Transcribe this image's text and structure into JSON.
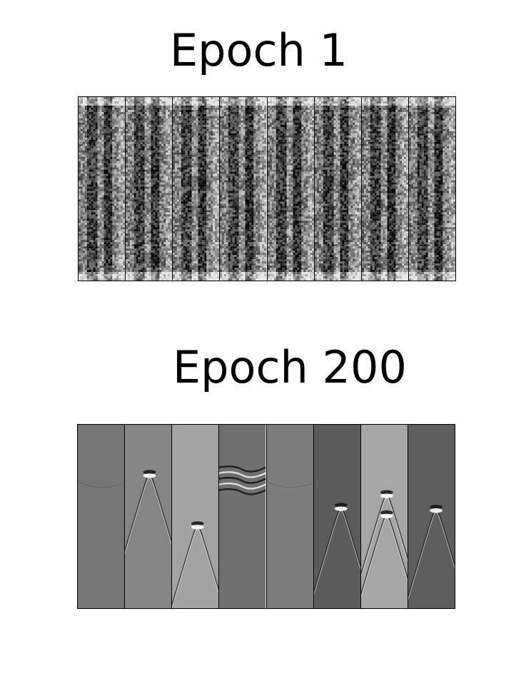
{
  "panels": [
    {
      "title": "Epoch 1",
      "tiles": [
        {
          "kind": "noise",
          "base": "#9a9a9a",
          "seed": 1
        },
        {
          "kind": "noise",
          "base": "#8e8e8e",
          "seed": 2
        },
        {
          "kind": "noise",
          "base": "#a0a0a0",
          "seed": 3
        },
        {
          "kind": "noise",
          "base": "#979797",
          "seed": 4
        },
        {
          "kind": "noise",
          "base": "#959595",
          "seed": 5
        },
        {
          "kind": "noise",
          "base": "#a2a2a2",
          "seed": 6
        },
        {
          "kind": "noise",
          "base": "#939393",
          "seed": 7
        },
        {
          "kind": "noise",
          "base": "#9c9c9c",
          "seed": 8
        }
      ]
    },
    {
      "title": "Epoch 200",
      "tiles": [
        {
          "kind": "flat",
          "base": "#767676"
        },
        {
          "kind": "hyperbola",
          "base": "#858585",
          "apex": [
            0.53,
            0.27
          ]
        },
        {
          "kind": "hyperbola",
          "base": "#a3a3a3",
          "apex": [
            0.55,
            0.55
          ]
        },
        {
          "kind": "layers",
          "base": "#6f6f6f"
        },
        {
          "kind": "flat",
          "base": "#7c7c7c"
        },
        {
          "kind": "hyperbola",
          "base": "#5b5b5b",
          "apex": [
            0.58,
            0.45
          ]
        },
        {
          "kind": "double-hyperbola",
          "base": "#a6a6a6",
          "apex": [
            0.55,
            0.43
          ]
        },
        {
          "kind": "hyperbola",
          "base": "#5d5d5d",
          "apex": [
            0.6,
            0.46
          ]
        }
      ]
    }
  ]
}
